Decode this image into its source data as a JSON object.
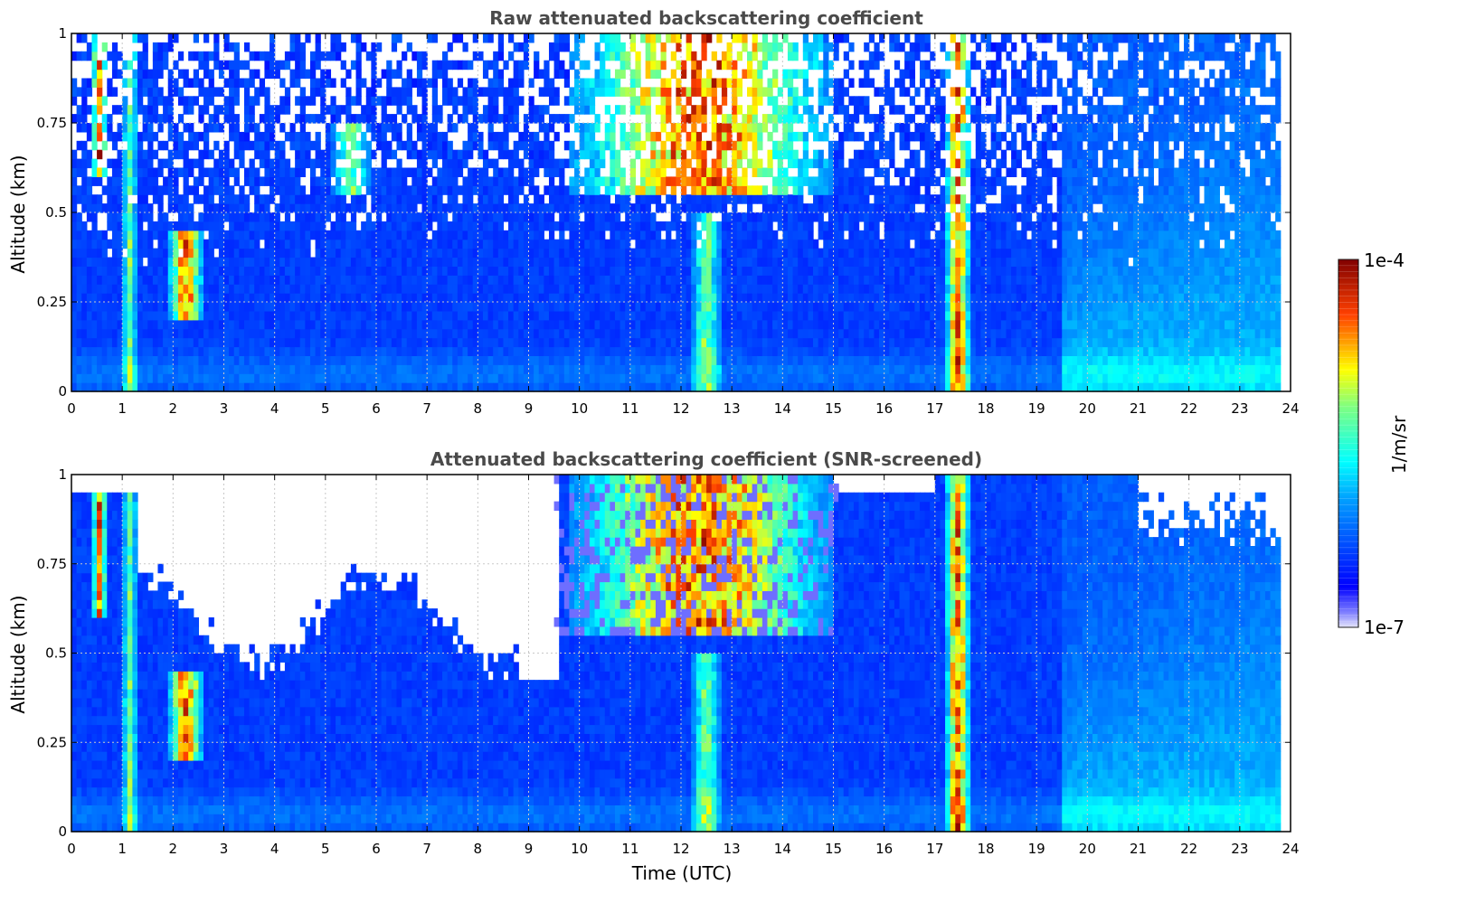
{
  "chart_data": [
    {
      "type": "heatmap",
      "title": "Raw attenuated backscattering coefficient",
      "xlabel": "",
      "ylabel": "Altitude (km)",
      "xlim": [
        0,
        24
      ],
      "ylim": [
        0,
        1
      ],
      "x_ticks": [
        "0",
        "1",
        "2",
        "3",
        "4",
        "5",
        "6",
        "7",
        "8",
        "9",
        "10",
        "11",
        "12",
        "13",
        "14",
        "15",
        "16",
        "17",
        "18",
        "19",
        "20",
        "21",
        "22",
        "23",
        "24"
      ],
      "y_ticks": [
        "0",
        "0.25",
        "0.5",
        "0.75",
        "1"
      ],
      "grid": true,
      "screened": false,
      "colorbar": {
        "label": "1/m/sr",
        "min_label": "1e-7",
        "max_label": "1e-4",
        "scale": "log"
      },
      "features": [
        {
          "t_start": 0.4,
          "t_end": 0.7,
          "z_bottom": 0.6,
          "z_top": 1.0,
          "intensity": "high"
        },
        {
          "t_start": 1.0,
          "t_end": 1.3,
          "z_bottom": 0.0,
          "z_top": 1.0,
          "intensity": "moderate"
        },
        {
          "t_start": 1.9,
          "t_end": 2.6,
          "z_bottom": 0.2,
          "z_top": 0.45,
          "intensity": "high"
        },
        {
          "t_start": 5.1,
          "t_end": 5.9,
          "z_bottom": 0.55,
          "z_top": 0.75,
          "intensity": "moderate"
        },
        {
          "t_start": 9.8,
          "t_end": 15.0,
          "z_bottom": 0.55,
          "z_top": 1.0,
          "intensity": "high"
        },
        {
          "t_start": 12.2,
          "t_end": 12.8,
          "z_bottom": 0.0,
          "z_top": 0.5,
          "intensity": "moderate"
        },
        {
          "t_start": 17.2,
          "t_end": 17.7,
          "z_bottom": 0.0,
          "z_top": 1.0,
          "intensity": "high"
        }
      ]
    },
    {
      "type": "heatmap",
      "title": "Attenuated backscattering coefficient (SNR-screened)",
      "xlabel": "Time (UTC)",
      "ylabel": "Altitude (km)",
      "xlim": [
        0,
        24
      ],
      "ylim": [
        0,
        1
      ],
      "x_ticks": [
        "0",
        "1",
        "2",
        "3",
        "4",
        "5",
        "6",
        "7",
        "8",
        "9",
        "10",
        "11",
        "12",
        "13",
        "14",
        "15",
        "16",
        "17",
        "18",
        "19",
        "20",
        "21",
        "22",
        "23",
        "24"
      ],
      "y_ticks": [
        "0",
        "0.25",
        "0.5",
        "0.75",
        "1"
      ],
      "grid": true,
      "screened": true,
      "colorbar": {
        "label": "1/m/sr",
        "min_label": "1e-7",
        "max_label": "1e-4",
        "scale": "log"
      },
      "features": [
        {
          "t_start": 0.4,
          "t_end": 0.7,
          "z_bottom": 0.6,
          "z_top": 1.0,
          "intensity": "high"
        },
        {
          "t_start": 1.0,
          "t_end": 1.3,
          "z_bottom": 0.0,
          "z_top": 1.0,
          "intensity": "moderate"
        },
        {
          "t_start": 1.9,
          "t_end": 2.6,
          "z_bottom": 0.2,
          "z_top": 0.45,
          "intensity": "high"
        },
        {
          "t_start": 9.8,
          "t_end": 15.0,
          "z_bottom": 0.55,
          "z_top": 1.0,
          "intensity": "high"
        },
        {
          "t_start": 12.2,
          "t_end": 12.8,
          "z_bottom": 0.0,
          "z_top": 0.5,
          "intensity": "moderate"
        },
        {
          "t_start": 17.2,
          "t_end": 17.7,
          "z_bottom": 0.0,
          "z_top": 1.0,
          "intensity": "high"
        }
      ]
    }
  ],
  "colorbar": {
    "label": "1/m/sr",
    "max_label": "1e-4",
    "min_label": "1e-7"
  }
}
